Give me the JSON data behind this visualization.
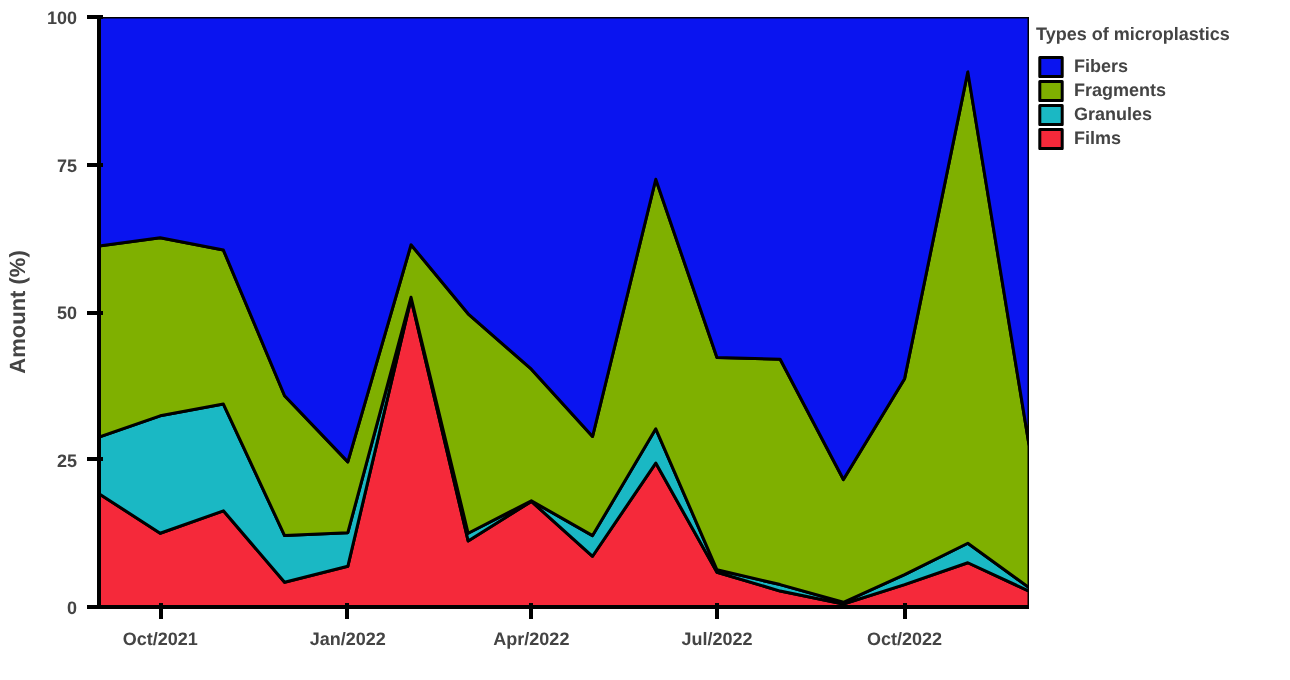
{
  "chart_data": {
    "type": "area",
    "stacked": true,
    "ylabel": "Amount (%)",
    "legend_title": "Types of microplastics",
    "legend": "right",
    "x": [
      "2021-09-01",
      "2021-10-01",
      "2021-11-01",
      "2021-12-01",
      "2022-01-01",
      "2022-02-01",
      "2022-03-01",
      "2022-04-01",
      "2022-05-01",
      "2022-06-01",
      "2022-07-01",
      "2022-08-01",
      "2022-09-01",
      "2022-10-01",
      "2022-11-01",
      "2022-12-01"
    ],
    "series": [
      {
        "name": "Films",
        "color": "#f5293a",
        "values": [
          19.2,
          12.5,
          16.3,
          4.2,
          6.9,
          52.2,
          11.2,
          17.9,
          8.6,
          24.4,
          5.9,
          2.7,
          0.5,
          3.8,
          7.5,
          2.7
        ]
      },
      {
        "name": "Granules",
        "color": "#1ab8c4",
        "values": [
          9.6,
          19.9,
          18.1,
          7.9,
          5.7,
          0.3,
          1.3,
          0.1,
          3.5,
          5.8,
          0.4,
          1.1,
          0.3,
          1.7,
          3.3,
          0.6
        ]
      },
      {
        "name": "Fragments",
        "color": "#7fb000",
        "values": [
          32.4,
          30.2,
          26.1,
          23.7,
          12.0,
          8.9,
          37.2,
          22.3,
          16.8,
          42.3,
          36.0,
          38.2,
          20.8,
          33.2,
          79.9,
          24.2
        ]
      },
      {
        "name": "Fibers",
        "color": "#0a14f0",
        "values": [
          38.8,
          37.4,
          39.5,
          64.2,
          75.4,
          38.6,
          50.3,
          59.7,
          71.1,
          27.5,
          57.7,
          58.0,
          78.4,
          61.3,
          9.3,
          72.5
        ]
      }
    ],
    "xlim": [
      "2021-09-01",
      "2022-12-01"
    ],
    "xticks": [
      {
        "value": "2021-10-01",
        "label": "Oct/2021"
      },
      {
        "value": "2022-01-01",
        "label": "Jan/2022"
      },
      {
        "value": "2022-04-01",
        "label": "Apr/2022"
      },
      {
        "value": "2022-07-01",
        "label": "Jul/2022"
      },
      {
        "value": "2022-10-01",
        "label": "Oct/2022"
      }
    ],
    "ylim": [
      0,
      100
    ],
    "yticks": [
      0,
      25,
      50,
      75,
      100
    ]
  }
}
